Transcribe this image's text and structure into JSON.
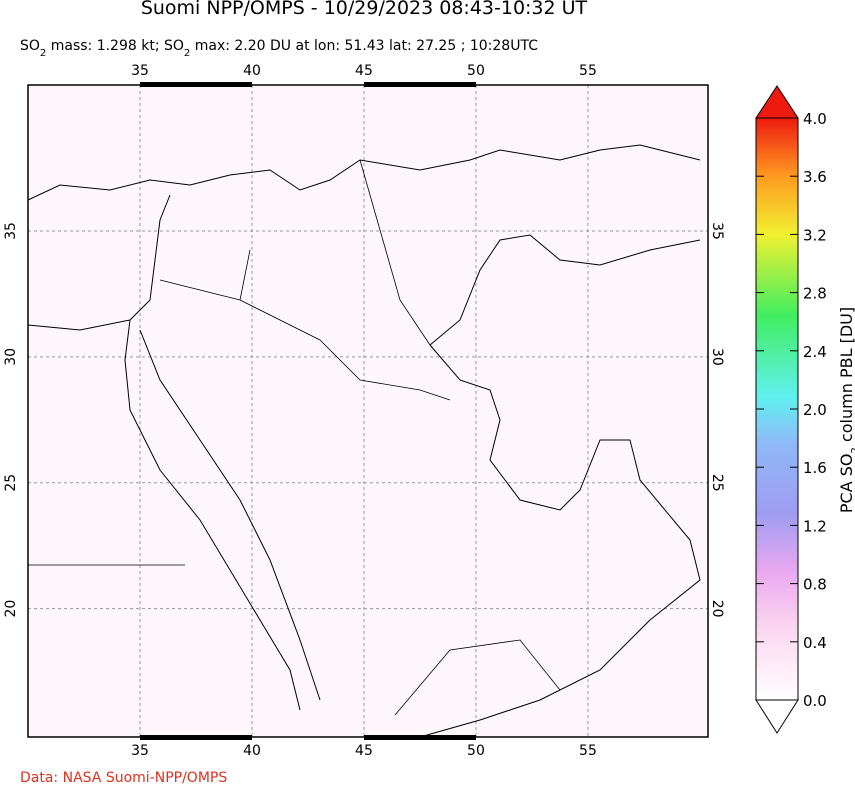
{
  "title": "Suomi NPP/OMPS - 10/29/2023 08:43-10:32 UT",
  "subtitle_parts": [
    "SO",
    "2",
    " mass: 1.298 kt; SO",
    "2",
    " max: 2.20 DU at lon: 51.43 lat: 27.25 ; 10:28UTC"
  ],
  "map": {
    "lonlim": [
      30,
      60.36
    ],
    "latlim": [
      14.9,
      40.8
    ],
    "lon_ticks": [
      35,
      40,
      45,
      50,
      55
    ],
    "lat_ticks": [
      35,
      30,
      25,
      20
    ]
  },
  "colorbar": {
    "range": [
      0,
      4
    ],
    "label_parts": [
      "PCA SO",
      "2",
      " column PBL [DU]"
    ],
    "ticks": [
      {
        "value": 0,
        "label": "0.0"
      },
      {
        "value": 0.4,
        "label": "0.4"
      },
      {
        "value": 0.8,
        "label": "0.8"
      },
      {
        "value": 1.2,
        "label": "1.2"
      },
      {
        "value": 1.6,
        "label": "1.6"
      },
      {
        "value": 2.0,
        "label": "2.0"
      },
      {
        "value": 2.4,
        "label": "2.4"
      },
      {
        "value": 2.8,
        "label": "2.8"
      },
      {
        "value": 3.2,
        "label": "3.2"
      },
      {
        "value": 3.6,
        "label": "3.6"
      },
      {
        "value": 4.0,
        "label": "4.0"
      }
    ]
  },
  "credit": "Data: NASA Suomi-NPP/OMPS"
}
